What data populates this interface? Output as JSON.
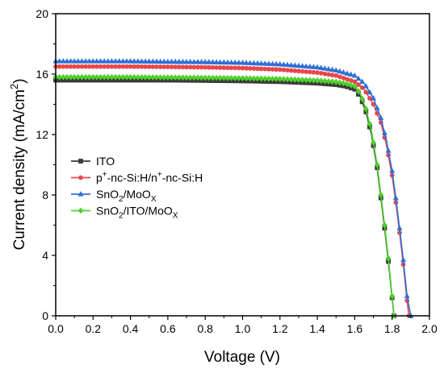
{
  "chart_data": {
    "type": "line",
    "xlabel": "Voltage (V)",
    "ylabel_main": "Current density (mA/cm",
    "ylabel_sup": "2",
    "ylabel_tail": ")",
    "xlim": [
      0,
      2.0
    ],
    "ylim": [
      0,
      20
    ],
    "x_ticks": [
      "0.0",
      "0.2",
      "0.4",
      "0.6",
      "0.8",
      "1.0",
      "1.2",
      "1.4",
      "1.6",
      "1.8",
      "2.0"
    ],
    "y_ticks": [
      "0",
      "4",
      "8",
      "12",
      "16",
      "20"
    ],
    "grid": false,
    "legend_position": "center-left",
    "series": [
      {
        "name": "ITO",
        "legend_parts": [
          {
            "t": "ITO",
            "s": ""
          }
        ],
        "color": "#3a3a3a",
        "marker": "square",
        "x": [
          0,
          0.2,
          0.4,
          0.6,
          0.8,
          1.0,
          1.2,
          1.4,
          1.5,
          1.55,
          1.6,
          1.63,
          1.66,
          1.69,
          1.72,
          1.74,
          1.76,
          1.78,
          1.8,
          1.81
        ],
        "y": [
          15.6,
          15.6,
          15.6,
          15.6,
          15.58,
          15.55,
          15.5,
          15.4,
          15.3,
          15.2,
          15.0,
          14.5,
          13.5,
          12.0,
          9.8,
          7.8,
          5.8,
          3.6,
          1.2,
          0
        ]
      },
      {
        "name": "p+-nc-Si:H/n+-nc-Si:H",
        "legend_parts": [
          {
            "t": "p",
            "s": ""
          },
          {
            "t": "+",
            "s": "sup"
          },
          {
            "t": "-nc-Si:H/n",
            "s": ""
          },
          {
            "t": "+",
            "s": "sup"
          },
          {
            "t": "-nc-Si:H",
            "s": ""
          }
        ],
        "color": "#e8474b",
        "marker": "circle",
        "x": [
          0,
          0.2,
          0.4,
          0.6,
          0.8,
          1.0,
          1.2,
          1.4,
          1.5,
          1.6,
          1.65,
          1.7,
          1.74,
          1.77,
          1.8,
          1.82,
          1.84,
          1.86,
          1.88,
          1.89
        ],
        "y": [
          16.5,
          16.5,
          16.5,
          16.48,
          16.45,
          16.4,
          16.3,
          16.1,
          15.9,
          15.5,
          15.0,
          14.0,
          12.8,
          11.3,
          9.3,
          7.5,
          5.5,
          3.4,
          1.0,
          0
        ]
      },
      {
        "name": "SnO2/MoOX",
        "legend_parts": [
          {
            "t": "SnO",
            "s": ""
          },
          {
            "t": "2",
            "s": "sub"
          },
          {
            "t": "/MoO",
            "s": ""
          },
          {
            "t": "X",
            "s": "sub"
          }
        ],
        "color": "#2f6fd6",
        "marker": "triangle",
        "x": [
          0,
          0.2,
          0.4,
          0.6,
          0.8,
          1.0,
          1.2,
          1.4,
          1.5,
          1.6,
          1.65,
          1.7,
          1.74,
          1.77,
          1.8,
          1.82,
          1.84,
          1.86,
          1.88,
          1.9
        ],
        "y": [
          16.85,
          16.85,
          16.85,
          16.82,
          16.8,
          16.75,
          16.65,
          16.45,
          16.25,
          15.9,
          15.4,
          14.4,
          13.1,
          11.6,
          9.6,
          7.8,
          5.8,
          3.7,
          1.3,
          0
        ]
      },
      {
        "name": "SnO2/ITO/MoOX",
        "legend_parts": [
          {
            "t": "SnO",
            "s": ""
          },
          {
            "t": "2",
            "s": "sub"
          },
          {
            "t": "/ITO/MoO",
            "s": ""
          },
          {
            "t": "X",
            "s": "sub"
          }
        ],
        "color": "#4fd02b",
        "marker": "diamond",
        "x": [
          0,
          0.2,
          0.4,
          0.6,
          0.8,
          1.0,
          1.2,
          1.4,
          1.5,
          1.55,
          1.6,
          1.63,
          1.66,
          1.69,
          1.72,
          1.74,
          1.76,
          1.78,
          1.8,
          1.81
        ],
        "y": [
          15.8,
          15.8,
          15.8,
          15.78,
          15.76,
          15.73,
          15.68,
          15.58,
          15.48,
          15.38,
          15.2,
          14.7,
          13.7,
          12.2,
          10.0,
          8.0,
          6.0,
          3.8,
          1.3,
          0
        ]
      }
    ]
  }
}
